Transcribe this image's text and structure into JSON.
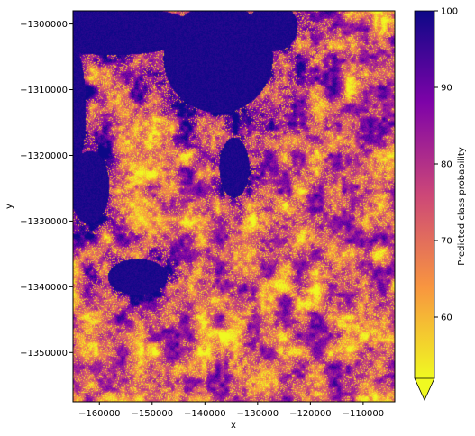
{
  "chart_data": {
    "type": "heatmap",
    "title": "",
    "xlabel": "x",
    "ylabel": "y",
    "xlim": [
      -165000,
      -104000
    ],
    "ylim": [
      -1357500,
      -1298000
    ],
    "x_ticks": [
      -160000,
      -150000,
      -140000,
      -130000,
      -120000,
      -110000
    ],
    "x_tick_labels": [
      "−160000",
      "−150000",
      "−140000",
      "−130000",
      "−120000",
      "−110000"
    ],
    "y_ticks": [
      -1300000,
      -1310000,
      -1320000,
      -1330000,
      -1340000,
      -1350000
    ],
    "y_tick_labels": [
      "−1300000",
      "−1310000",
      "−1320000",
      "−1330000",
      "−1340000",
      "−1350000"
    ],
    "colorbar": {
      "label": "Predicted class probability",
      "colormap": "plasma_r",
      "range": [
        52,
        100
      ],
      "extend": "min",
      "ticks": [
        60,
        70,
        80,
        90,
        100
      ],
      "tick_labels": [
        "60",
        "70",
        "80",
        "90",
        "100"
      ]
    },
    "colors": {
      "high": "#0d0887",
      "mid_high": "#7e03a8",
      "mid": "#cc4778",
      "mid_low": "#f89540",
      "low": "#f0f921"
    }
  }
}
